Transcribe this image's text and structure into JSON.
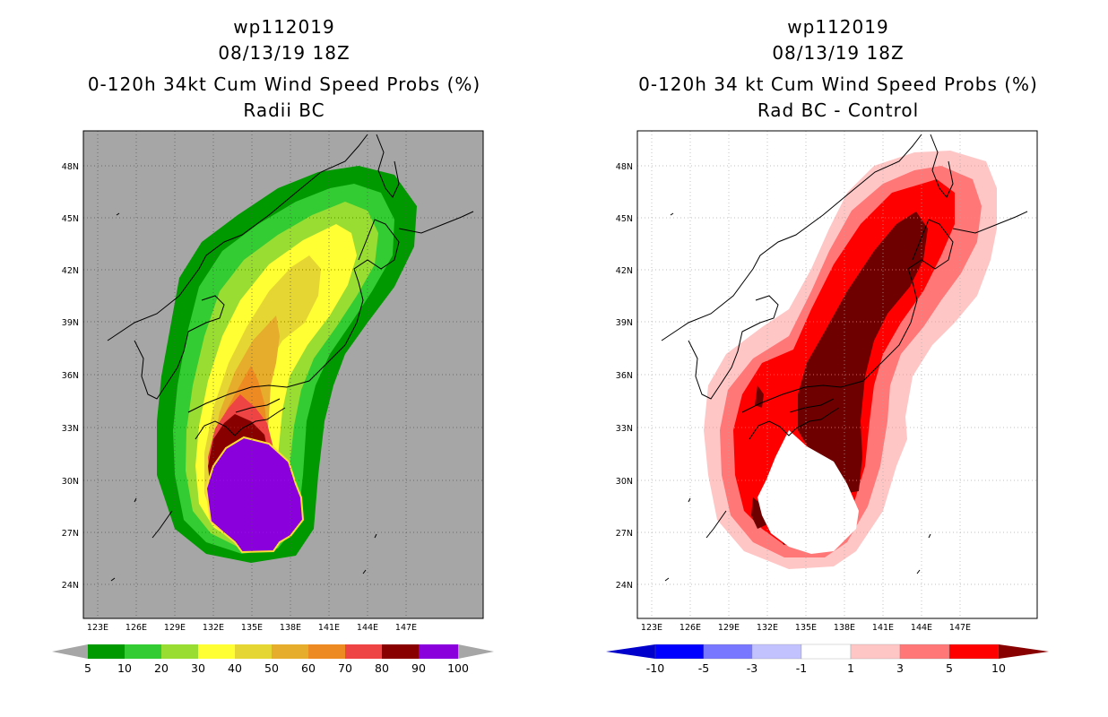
{
  "left_panel": {
    "title_line1": "wp112019",
    "title_line2": "08/13/19 18Z",
    "title_line3": "0-120h 34kt Cum Wind Speed Probs (%)",
    "title_line4": "Radii BC",
    "background": "#a6a6a6",
    "colorbar": {
      "colors": [
        "#009900",
        "#33cc33",
        "#99dd33",
        "#ffff33",
        "#e6d633",
        "#e6ad2d",
        "#ee8a22",
        "#ee4444",
        "#880000",
        "#8a00dd"
      ],
      "labels": [
        "5",
        "10",
        "20",
        "30",
        "40",
        "50",
        "60",
        "70",
        "80",
        "90",
        "100"
      ]
    }
  },
  "right_panel": {
    "title_line1": "wp112019",
    "title_line2": "08/13/19 18Z",
    "title_line3": "0-120h 34 kt Cum Wind Speed Probs (%)",
    "title_line4": "Rad BC - Control",
    "background": "#ffffff",
    "colorbar": {
      "colors": [
        "#0000cc",
        "#0000ff",
        "#7777ff",
        "#c2c2ff",
        "#ffffff",
        "#ffc6c6",
        "#ff7777",
        "#ff0000",
        "#880000"
      ],
      "labels": [
        "-10",
        "-5",
        "-3",
        "-1",
        "1",
        "3",
        "5",
        "10"
      ]
    }
  },
  "axes": {
    "lat_labels": [
      "48N",
      "45N",
      "42N",
      "39N",
      "36N",
      "33N",
      "30N",
      "27N",
      "24N"
    ],
    "lon_labels": [
      "123E",
      "126E",
      "129E",
      "132E",
      "135E",
      "138E",
      "141E",
      "144E",
      "147E"
    ]
  }
}
